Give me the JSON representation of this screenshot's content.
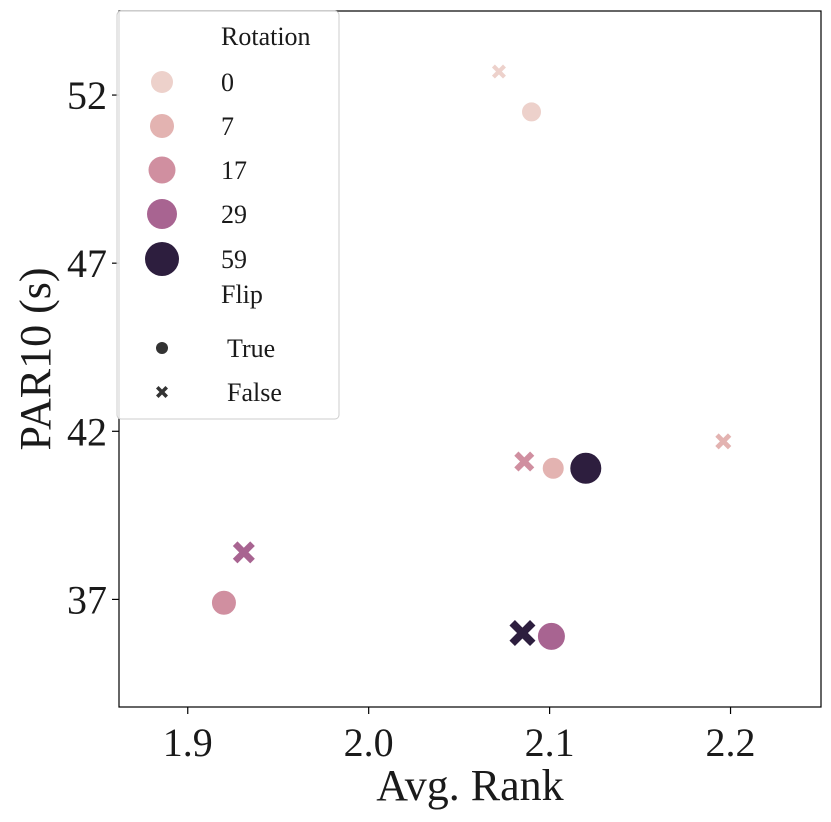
{
  "chart_data": {
    "type": "scatter",
    "xlabel": "Avg. Rank",
    "ylabel": "PAR10 (s)",
    "xlim": [
      1.862,
      2.25
    ],
    "ylim": [
      33.8,
      54.5
    ],
    "xticks": [
      1.9,
      2.0,
      2.1,
      2.2
    ],
    "xtick_labels": [
      "1.9",
      "2.0",
      "2.1",
      "2.2"
    ],
    "yticks": [
      37,
      42,
      47,
      52
    ],
    "ytick_labels": [
      "37",
      "42",
      "47",
      "52"
    ],
    "grid": false,
    "legend_position": "top-left",
    "legend": {
      "hue_title": "Rotation",
      "hue_entries": [
        {
          "label": "0",
          "color": "#edd1cb"
        },
        {
          "label": "7",
          "color": "#e3b3b1"
        },
        {
          "label": "17",
          "color": "#d08fa0"
        },
        {
          "label": "29",
          "color": "#a86491"
        },
        {
          "label": "59",
          "color": "#2d1e3e"
        }
      ],
      "style_title": "Flip",
      "style_entries": [
        {
          "label": "True",
          "marker": "circle"
        },
        {
          "label": "False",
          "marker": "x"
        }
      ]
    },
    "points": [
      {
        "x": 2.072,
        "y": 52.7,
        "rotation": "0",
        "flip": "False"
      },
      {
        "x": 2.09,
        "y": 51.5,
        "rotation": "0",
        "flip": "True"
      },
      {
        "x": 2.196,
        "y": 41.7,
        "rotation": "7",
        "flip": "False"
      },
      {
        "x": 2.102,
        "y": 40.9,
        "rotation": "7",
        "flip": "True"
      },
      {
        "x": 2.086,
        "y": 41.1,
        "rotation": "17",
        "flip": "False"
      },
      {
        "x": 1.92,
        "y": 36.9,
        "rotation": "17",
        "flip": "True"
      },
      {
        "x": 1.931,
        "y": 38.4,
        "rotation": "29",
        "flip": "False"
      },
      {
        "x": 2.101,
        "y": 35.9,
        "rotation": "29",
        "flip": "True"
      },
      {
        "x": 2.12,
        "y": 40.9,
        "rotation": "59",
        "flip": "True"
      },
      {
        "x": 2.085,
        "y": 36.0,
        "rotation": "59",
        "flip": "False"
      }
    ]
  }
}
